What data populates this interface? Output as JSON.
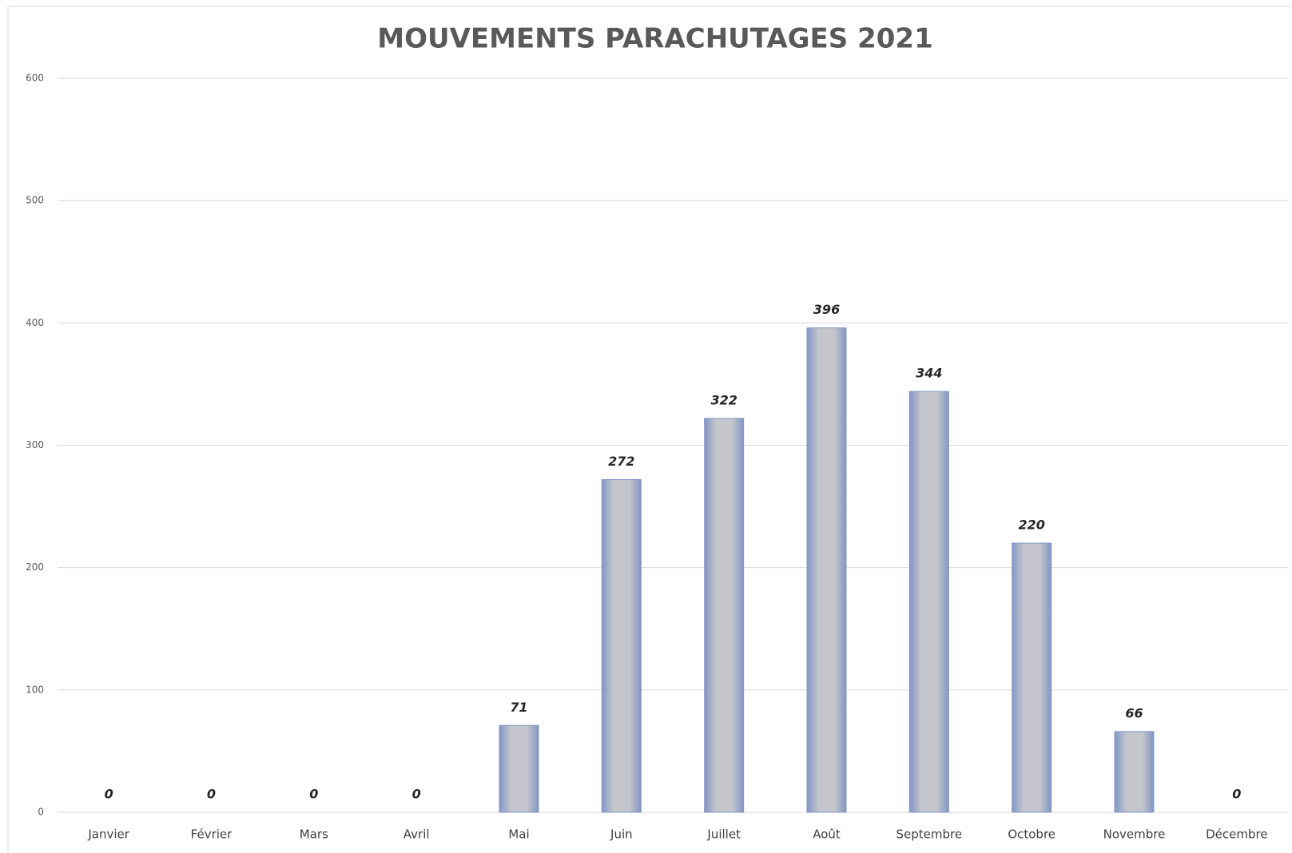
{
  "chart_data": {
    "type": "bar",
    "title": "MOUVEMENTS PARACHUTAGES 2021",
    "categories": [
      "Janvier",
      "Février",
      "Mars",
      "Avril",
      "Mai",
      "Juin",
      "Juillet",
      "Août",
      "Septembre",
      "Octobre",
      "Novembre",
      "Décembre"
    ],
    "values": [
      0,
      0,
      0,
      0,
      71,
      272,
      322,
      396,
      344,
      220,
      66,
      0
    ],
    "color": "#c8c8c8",
    "ylim": [
      0,
      600
    ],
    "yticks": [
      0,
      100,
      200,
      300,
      400,
      500,
      600
    ],
    "grid": true
  }
}
